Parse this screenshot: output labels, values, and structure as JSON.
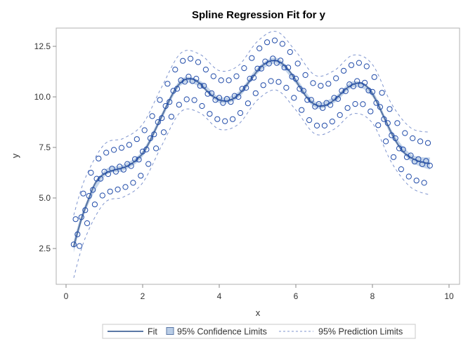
{
  "chart_data": {
    "type": "scatter",
    "title": "Spline Regression Fit for y",
    "xlabel": "x",
    "ylabel": "y",
    "xlim": [
      -0.25,
      10.3
    ],
    "ylim": [
      1.0,
      13.5
    ],
    "xticks": [
      0,
      2,
      4,
      6,
      8,
      10
    ],
    "xtick_labels": [
      "0",
      "2",
      "4",
      "6",
      "8",
      "10"
    ],
    "yticks": [
      2.5,
      5.0,
      7.5,
      10.0,
      12.5
    ],
    "ytick_labels": [
      "2.5",
      "5.0",
      "7.5",
      "10.0",
      "12.5"
    ],
    "grid": false,
    "legend_position": "bottom",
    "legend": {
      "fit": "Fit",
      "confidence": "95% Confidence Limits",
      "prediction": "95% Prediction Limits"
    },
    "colors": {
      "marker": "#1f4aa8",
      "fit": "#5b78a6",
      "confidence_band": "#b9cde6",
      "prediction": "#7f95cf"
    },
    "points": [
      [
        0.2,
        2.7
      ],
      [
        0.25,
        3.95
      ],
      [
        0.3,
        3.2
      ],
      [
        0.35,
        2.62
      ],
      [
        0.4,
        4.05
      ],
      [
        0.45,
        5.22
      ],
      [
        0.5,
        4.4
      ],
      [
        0.55,
        3.75
      ],
      [
        0.6,
        5.1
      ],
      [
        0.65,
        6.25
      ],
      [
        0.7,
        5.4
      ],
      [
        0.75,
        4.68
      ],
      [
        0.8,
        5.95
      ],
      [
        0.85,
        6.95
      ],
      [
        0.9,
        5.95
      ],
      [
        0.95,
        5.12
      ],
      [
        1.0,
        6.3
      ],
      [
        1.05,
        7.24
      ],
      [
        1.1,
        6.18
      ],
      [
        1.15,
        5.32
      ],
      [
        1.2,
        6.45
      ],
      [
        1.25,
        7.38
      ],
      [
        1.3,
        6.3
      ],
      [
        1.35,
        5.42
      ],
      [
        1.4,
        6.55
      ],
      [
        1.45,
        7.48
      ],
      [
        1.5,
        6.4
      ],
      [
        1.55,
        5.54
      ],
      [
        1.6,
        6.68
      ],
      [
        1.65,
        7.63
      ],
      [
        1.7,
        6.58
      ],
      [
        1.75,
        5.75
      ],
      [
        1.8,
        6.92
      ],
      [
        1.85,
        7.91
      ],
      [
        1.9,
        6.9
      ],
      [
        1.95,
        6.1
      ],
      [
        2.0,
        7.3
      ],
      [
        2.05,
        8.35
      ],
      [
        2.1,
        7.4
      ],
      [
        2.15,
        6.68
      ],
      [
        2.2,
        7.95
      ],
      [
        2.25,
        9.05
      ],
      [
        2.3,
        8.15
      ],
      [
        2.35,
        7.45
      ],
      [
        2.4,
        8.75
      ],
      [
        2.45,
        9.85
      ],
      [
        2.5,
        8.95
      ],
      [
        2.55,
        8.25
      ],
      [
        2.6,
        9.55
      ],
      [
        2.65,
        10.65
      ],
      [
        2.7,
        9.75
      ],
      [
        2.75,
        9.02
      ],
      [
        2.8,
        10.3
      ],
      [
        2.85,
        11.35
      ],
      [
        2.9,
        10.4
      ],
      [
        2.95,
        9.61
      ],
      [
        3.0,
        10.82
      ],
      [
        3.05,
        11.78
      ],
      [
        3.1,
        10.75
      ],
      [
        3.15,
        9.88
      ],
      [
        3.2,
        11.0
      ],
      [
        3.25,
        11.89
      ],
      [
        3.3,
        10.78
      ],
      [
        3.35,
        9.84
      ],
      [
        3.4,
        10.9
      ],
      [
        3.45,
        11.72
      ],
      [
        3.5,
        10.55
      ],
      [
        3.55,
        9.55
      ],
      [
        3.6,
        10.55
      ],
      [
        3.65,
        11.35
      ],
      [
        3.7,
        10.15
      ],
      [
        3.75,
        9.16
      ],
      [
        3.8,
        10.18
      ],
      [
        3.85,
        11.02
      ],
      [
        3.9,
        9.85
      ],
      [
        3.95,
        8.9
      ],
      [
        4.0,
        9.95
      ],
      [
        4.05,
        10.82
      ],
      [
        4.1,
        9.7
      ],
      [
        4.15,
        8.8
      ],
      [
        4.2,
        9.9
      ],
      [
        4.25,
        10.82
      ],
      [
        4.3,
        9.75
      ],
      [
        4.35,
        8.9
      ],
      [
        4.4,
        10.05
      ],
      [
        4.45,
        11.02
      ],
      [
        4.5,
        10.0
      ],
      [
        4.55,
        9.2
      ],
      [
        4.6,
        10.4
      ],
      [
        4.65,
        11.42
      ],
      [
        4.7,
        10.45
      ],
      [
        4.75,
        9.68
      ],
      [
        4.8,
        10.9
      ],
      [
        4.85,
        11.92
      ],
      [
        4.9,
        10.95
      ],
      [
        4.95,
        10.18
      ],
      [
        5.0,
        11.4
      ],
      [
        5.05,
        12.4
      ],
      [
        5.1,
        11.4
      ],
      [
        5.15,
        10.58
      ],
      [
        5.2,
        11.75
      ],
      [
        5.25,
        12.7
      ],
      [
        5.3,
        11.65
      ],
      [
        5.35,
        10.78
      ],
      [
        5.4,
        11.9
      ],
      [
        5.45,
        12.79
      ],
      [
        5.5,
        11.68
      ],
      [
        5.55,
        10.74
      ],
      [
        5.6,
        11.8
      ],
      [
        5.65,
        12.62
      ],
      [
        5.7,
        11.45
      ],
      [
        5.75,
        10.45
      ],
      [
        5.8,
        11.45
      ],
      [
        5.85,
        12.22
      ],
      [
        5.9,
        11.0
      ],
      [
        5.95,
        9.95
      ],
      [
        6.0,
        10.9
      ],
      [
        6.05,
        11.65
      ],
      [
        6.1,
        10.4
      ],
      [
        6.15,
        9.35
      ],
      [
        6.2,
        10.3
      ],
      [
        6.25,
        11.08
      ],
      [
        6.3,
        9.85
      ],
      [
        6.35,
        8.85
      ],
      [
        6.4,
        9.85
      ],
      [
        6.45,
        10.68
      ],
      [
        6.5,
        9.52
      ],
      [
        6.55,
        8.58
      ],
      [
        6.6,
        9.65
      ],
      [
        6.65,
        10.55
      ],
      [
        6.7,
        9.45
      ],
      [
        6.75,
        8.58
      ],
      [
        6.8,
        9.7
      ],
      [
        6.85,
        10.65
      ],
      [
        6.9,
        9.6
      ],
      [
        6.95,
        8.78
      ],
      [
        7.0,
        9.95
      ],
      [
        7.05,
        10.92
      ],
      [
        7.1,
        9.9
      ],
      [
        7.15,
        9.1
      ],
      [
        7.2,
        10.3
      ],
      [
        7.25,
        11.29
      ],
      [
        7.3,
        10.28
      ],
      [
        7.35,
        9.45
      ],
      [
        7.4,
        10.62
      ],
      [
        7.45,
        11.57
      ],
      [
        7.5,
        10.52
      ],
      [
        7.55,
        9.65
      ],
      [
        7.6,
        10.78
      ],
      [
        7.65,
        11.68
      ],
      [
        7.7,
        10.58
      ],
      [
        7.75,
        9.64
      ],
      [
        7.8,
        10.7
      ],
      [
        7.85,
        11.51
      ],
      [
        7.9,
        10.32
      ],
      [
        7.95,
        9.28
      ],
      [
        8.0,
        10.25
      ],
      [
        8.05,
        10.98
      ],
      [
        8.1,
        9.7
      ],
      [
        8.15,
        8.6
      ],
      [
        8.2,
        9.5
      ],
      [
        8.25,
        10.2
      ],
      [
        8.3,
        8.9
      ],
      [
        8.35,
        7.8
      ],
      [
        8.4,
        8.7
      ],
      [
        8.45,
        9.4
      ],
      [
        8.5,
        8.1
      ],
      [
        8.55,
        7.02
      ],
      [
        8.6,
        7.95
      ],
      [
        8.65,
        8.7
      ],
      [
        8.7,
        7.45
      ],
      [
        8.75,
        6.42
      ],
      [
        8.8,
        7.4
      ],
      [
        8.85,
        8.21
      ],
      [
        8.9,
        7.02
      ],
      [
        8.95,
        6.06
      ],
      [
        9.0,
        7.1
      ],
      [
        9.05,
        7.95
      ],
      [
        9.1,
        6.8
      ],
      [
        9.15,
        5.86
      ],
      [
        9.2,
        6.92
      ],
      [
        9.25,
        7.8
      ],
      [
        9.3,
        6.67
      ],
      [
        9.35,
        5.75
      ],
      [
        9.4,
        6.83
      ],
      [
        9.45,
        7.72
      ],
      [
        9.5,
        6.6
      ]
    ],
    "fit": {
      "x": [
        0.2,
        0.3,
        0.4,
        0.5,
        0.6,
        0.7,
        0.8,
        0.9,
        1.0,
        1.1,
        1.2,
        1.3,
        1.4,
        1.5,
        1.6,
        1.7,
        1.8,
        1.9,
        2.0,
        2.1,
        2.2,
        2.3,
        2.4,
        2.5,
        2.6,
        2.7,
        2.8,
        2.9,
        3.0,
        3.1,
        3.2,
        3.3,
        3.4,
        3.5,
        3.6,
        3.7,
        3.8,
        3.9,
        4.0,
        4.1,
        4.2,
        4.3,
        4.4,
        4.5,
        4.6,
        4.7,
        4.8,
        4.9,
        5.0,
        5.1,
        5.2,
        5.3,
        5.4,
        5.5,
        5.6,
        5.7,
        5.8,
        5.9,
        6.0,
        6.1,
        6.2,
        6.3,
        6.4,
        6.5,
        6.6,
        6.7,
        6.8,
        6.9,
        7.0,
        7.1,
        7.2,
        7.3,
        7.4,
        7.5,
        7.6,
        7.7,
        7.8,
        7.9,
        8.0,
        8.1,
        8.2,
        8.3,
        8.4,
        8.5,
        8.6,
        8.7,
        8.8,
        8.9,
        9.0,
        9.1,
        9.2,
        9.3,
        9.4,
        9.5
      ],
      "y": [
        2.6,
        3.3,
        3.95,
        4.5,
        5.0,
        5.5,
        5.85,
        6.05,
        6.2,
        6.28,
        6.35,
        6.4,
        6.45,
        6.5,
        6.58,
        6.68,
        6.82,
        7.0,
        7.2,
        7.5,
        7.85,
        8.25,
        8.65,
        9.05,
        9.45,
        9.85,
        10.2,
        10.5,
        10.72,
        10.85,
        10.9,
        10.88,
        10.8,
        10.65,
        10.45,
        10.25,
        10.08,
        9.95,
        9.85,
        9.8,
        9.8,
        9.85,
        9.95,
        10.1,
        10.3,
        10.55,
        10.8,
        11.05,
        11.3,
        11.5,
        11.65,
        11.75,
        11.8,
        11.78,
        11.7,
        11.55,
        11.35,
        11.1,
        10.8,
        10.5,
        10.2,
        9.95,
        9.75,
        9.62,
        9.55,
        9.55,
        9.6,
        9.7,
        9.85,
        10.0,
        10.2,
        10.38,
        10.52,
        10.62,
        10.68,
        10.68,
        10.6,
        10.42,
        10.15,
        9.8,
        9.4,
        9.0,
        8.6,
        8.2,
        7.85,
        7.55,
        7.3,
        7.12,
        7.0,
        6.9,
        6.82,
        6.77,
        6.73,
        6.7
      ]
    },
    "limits": {
      "x": [
        0.2,
        0.5,
        1.0,
        1.5,
        2.0,
        2.5,
        3.0,
        3.5,
        4.0,
        4.5,
        5.0,
        5.5,
        6.0,
        6.5,
        7.0,
        7.5,
        8.0,
        8.5,
        9.0,
        9.5
      ],
      "cl_lower": [
        2.3,
        4.32,
        6.05,
        6.35,
        7.05,
        8.9,
        10.57,
        10.5,
        9.7,
        9.95,
        11.15,
        11.63,
        10.65,
        9.47,
        9.7,
        10.47,
        10.0,
        8.05,
        6.82,
        6.4
      ],
      "cl_upper": [
        2.9,
        4.68,
        6.35,
        6.65,
        7.35,
        9.2,
        10.87,
        10.8,
        10.0,
        10.25,
        11.45,
        11.93,
        10.95,
        9.77,
        10.0,
        10.77,
        10.3,
        8.35,
        7.18,
        7.0
      ],
      "pl_lower": [
        1.05,
        3.02,
        4.75,
        5.05,
        5.75,
        7.6,
        9.27,
        9.2,
        8.4,
        8.65,
        9.85,
        10.33,
        9.35,
        8.17,
        8.4,
        9.17,
        8.7,
        6.75,
        5.53,
        5.15
      ],
      "pl_upper": [
        4.15,
        5.98,
        7.65,
        7.95,
        8.65,
        10.5,
        12.17,
        12.1,
        11.3,
        11.55,
        12.75,
        13.23,
        12.25,
        11.07,
        11.3,
        12.07,
        11.6,
        9.65,
        8.47,
        8.25
      ]
    }
  }
}
